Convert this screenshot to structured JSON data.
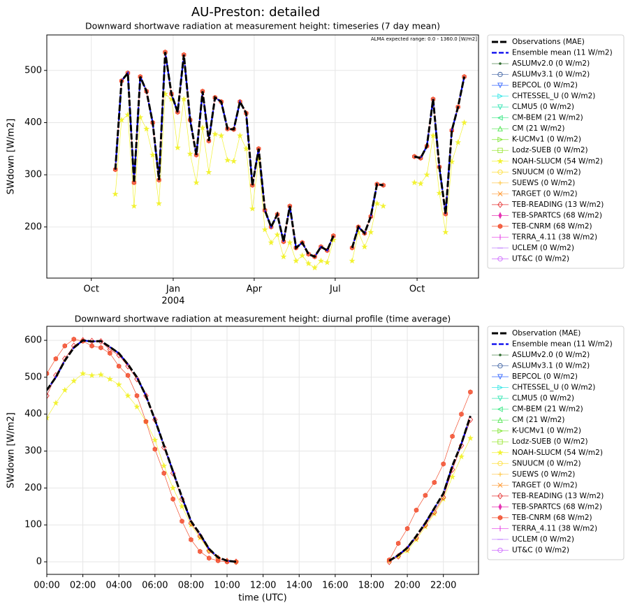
{
  "suptitle": "AU-Preston: detailed",
  "chart_data": [
    {
      "type": "line",
      "title": "Downward shortwave radiation at measurement height: timeseries (7 day mean)",
      "annotation": "ALMA expected range: 0.0 - 1360.0 [W/m2]",
      "ylabel": "SWdown [W/m2]",
      "grid": true,
      "legend": "outside right",
      "xlim": [
        "2003-08-12",
        "2004-12-09"
      ],
      "xticks": [
        {
          "value": "2003-10-01",
          "label": "Oct"
        },
        {
          "value": "2004-01-01",
          "label": "Jan",
          "sublabel": "2004"
        },
        {
          "value": "2004-04-01",
          "label": "Apr"
        },
        {
          "value": "2004-07-01",
          "label": "Jul"
        },
        {
          "value": "2004-10-01",
          "label": "Oct"
        }
      ],
      "ylim": [
        102,
        568
      ],
      "yticks": [
        200,
        300,
        400,
        500
      ],
      "x": [
        "2003-10-28",
        "2003-11-04",
        "2003-11-11",
        "2003-11-18",
        "2003-11-25",
        "2003-12-02",
        "2003-12-09",
        "2003-12-16",
        "2003-12-23",
        "2003-12-30",
        "2004-01-06",
        "2004-01-13",
        "2004-01-20",
        "2004-01-27",
        "2004-02-03",
        "2004-02-10",
        "2004-02-17",
        "2004-02-24",
        "2004-03-02",
        "2004-03-09",
        "2004-03-16",
        "2004-03-23",
        "2004-03-30",
        "2004-04-06",
        "2004-04-13",
        "2004-04-20",
        "2004-04-27",
        "2004-05-04",
        "2004-05-11",
        "2004-05-18",
        "2004-05-25",
        "2004-06-01",
        "2004-06-08",
        "2004-06-15",
        "2004-06-22",
        "2004-06-29",
        "2004-07-06",
        "2004-07-13",
        "2004-07-20",
        "2004-07-27",
        "2004-08-03",
        "2004-08-10",
        "2004-08-17",
        "2004-08-24",
        "2004-08-31",
        "2004-09-07",
        "2004-09-14",
        "2004-09-21",
        "2004-09-28",
        "2004-10-05",
        "2004-10-12",
        "2004-10-19",
        "2004-10-26",
        "2004-11-02",
        "2004-11-09",
        "2004-11-16",
        "2004-11-23"
      ],
      "series": [
        {
          "name": "Observations (MAE)",
          "color": "#000000",
          "style": "obs",
          "values": [
            310,
            480,
            495,
            285,
            488,
            460,
            400,
            290,
            535,
            455,
            420,
            530,
            405,
            338,
            460,
            365,
            448,
            440,
            388,
            387,
            440,
            418,
            280,
            350,
            232,
            200,
            224,
            172,
            240,
            160,
            170,
            148,
            143,
            162,
            155,
            183,
            null,
            null,
            160,
            200,
            188,
            220,
            282,
            280,
            null,
            null,
            null,
            null,
            335,
            332,
            355,
            445,
            315,
            225,
            385,
            430,
            488
          ]
        },
        {
          "name": "Ensemble mean (11 W/m2)",
          "color": "#0000ee",
          "style": "ens",
          "values": [
            310,
            480,
            495,
            285,
            488,
            460,
            400,
            290,
            535,
            455,
            420,
            530,
            405,
            338,
            460,
            365,
            448,
            440,
            388,
            387,
            440,
            418,
            280,
            350,
            232,
            200,
            224,
            172,
            240,
            160,
            170,
            148,
            143,
            162,
            155,
            183,
            null,
            null,
            160,
            200,
            188,
            220,
            282,
            280,
            null,
            null,
            null,
            null,
            335,
            332,
            355,
            445,
            315,
            225,
            385,
            430,
            488
          ]
        },
        {
          "name": "ASLUMv2.0 (0 W/m2)",
          "color": "#2e6b2e",
          "marker": "dot"
        },
        {
          "name": "ASLUMv3.1 (0 W/m2)",
          "color": "#3a5fa0",
          "marker": "circle"
        },
        {
          "name": "BEPCOL (0 W/m2)",
          "color": "#3366ff",
          "marker": "tri-down"
        },
        {
          "name": "CHTESSEL_U (0 W/m2)",
          "color": "#33e6e6",
          "marker": "tri-right"
        },
        {
          "name": "CLMU5 (0 W/m2)",
          "color": "#33e6b3",
          "marker": "tri-down"
        },
        {
          "name": "CM-BEM (21 W/m2)",
          "color": "#33e680",
          "marker": "tri-left"
        },
        {
          "name": "CM (21 W/m2)",
          "color": "#4de64d",
          "marker": "tri-up"
        },
        {
          "name": "K-UCMv1 (0 W/m2)",
          "color": "#80e633",
          "marker": "tri-right"
        },
        {
          "name": "Lodz-SUEB (0 W/m2)",
          "color": "#99e633",
          "marker": "square"
        },
        {
          "name": "NOAH-SLUCM (54 W/m2)",
          "color": "#f2f233",
          "marker": "star",
          "values": [
            263,
            405,
            415,
            240,
            410,
            388,
            338,
            245,
            455,
            445,
            352,
            445,
            340,
            285,
            390,
            305,
            378,
            375,
            328,
            326,
            375,
            350,
            235,
            330,
            195,
            170,
            185,
            143,
            170,
            135,
            145,
            130,
            122,
            135,
            132,
            175,
            null,
            null,
            135,
            190,
            162,
            190,
            245,
            240,
            null,
            null,
            null,
            null,
            285,
            283,
            300,
            375,
            265,
            190,
            325,
            362,
            400
          ]
        },
        {
          "name": "SNUUCM (0 W/m2)",
          "color": "#ffdd33",
          "marker": "circle"
        },
        {
          "name": "SUEWS (0 W/m2)",
          "color": "#ffc033",
          "marker": "plus"
        },
        {
          "name": "TARGET (0 W/m2)",
          "color": "#ff9933",
          "marker": "x"
        },
        {
          "name": "TEB-READING (13 W/m2)",
          "color": "#e63333",
          "marker": "diamond"
        },
        {
          "name": "TEB-SPARTCS (68 W/m2)",
          "color": "#e633b3",
          "marker": "thin-diamond"
        },
        {
          "name": "TEB-CNRM (68 W/m2)",
          "color": "#f25030",
          "marker": "hexagon",
          "values": [
            310,
            480,
            495,
            285,
            488,
            460,
            400,
            290,
            535,
            455,
            420,
            530,
            405,
            338,
            460,
            365,
            448,
            440,
            388,
            387,
            440,
            418,
            280,
            350,
            232,
            200,
            224,
            172,
            240,
            160,
            170,
            148,
            143,
            162,
            155,
            183,
            null,
            null,
            160,
            200,
            188,
            220,
            282,
            280,
            null,
            null,
            null,
            null,
            335,
            332,
            355,
            445,
            315,
            225,
            385,
            430,
            488
          ]
        },
        {
          "name": "TERRA_4.11 (38 W/m2)",
          "color": "#e633e6",
          "marker": "vline"
        },
        {
          "name": "UCLEM (0 W/m2)",
          "color": "#b366ff",
          "marker": "hline"
        },
        {
          "name": "UT&C (0 W/m2)",
          "color": "#cc66ff",
          "marker": "circle"
        }
      ]
    },
    {
      "type": "line",
      "title": "Downward shortwave radiation at measurement height: diurnal profile (time average)",
      "xlabel": "time (UTC)",
      "ylabel": "SWdown [W/m2]",
      "grid": true,
      "legend": "outside right",
      "xlim": [
        0,
        23.95
      ],
      "xticks": [
        {
          "value": 0,
          "label": "00:00"
        },
        {
          "value": 2,
          "label": "02:00"
        },
        {
          "value": 4,
          "label": "04:00"
        },
        {
          "value": 6,
          "label": "06:00"
        },
        {
          "value": 8,
          "label": "08:00"
        },
        {
          "value": 10,
          "label": "10:00"
        },
        {
          "value": 12,
          "label": "12:00"
        },
        {
          "value": 14,
          "label": "14:00"
        },
        {
          "value": 16,
          "label": "16:00"
        },
        {
          "value": 18,
          "label": "18:00"
        },
        {
          "value": 20,
          "label": "20:00"
        },
        {
          "value": 22,
          "label": "22:00"
        }
      ],
      "ylim": [
        -34,
        638
      ],
      "yticks": [
        0,
        100,
        200,
        300,
        400,
        500,
        600
      ],
      "x": [
        0,
        0.5,
        1,
        1.5,
        2,
        2.5,
        3,
        3.5,
        4,
        4.5,
        5,
        5.5,
        6,
        6.5,
        7,
        7.5,
        8,
        8.5,
        9,
        9.5,
        10,
        10.5,
        11,
        11.5,
        12,
        12.5,
        13,
        13.5,
        14,
        14.5,
        15,
        15.5,
        16,
        16.5,
        17,
        17.5,
        18,
        18.5,
        19,
        19.5,
        20,
        20.5,
        21,
        21.5,
        22,
        22.5,
        23,
        23.5
      ],
      "series": [
        {
          "name": "Observation (MAE)",
          "color": "#000000",
          "style": "obs",
          "values": [
            465,
            500,
            545,
            580,
            600,
            597,
            598,
            582,
            565,
            535,
            500,
            450,
            385,
            315,
            245,
            175,
            110,
            75,
            35,
            12,
            3,
            0,
            null,
            null,
            null,
            null,
            null,
            null,
            null,
            null,
            null,
            null,
            null,
            null,
            null,
            null,
            null,
            null,
            3,
            18,
            38,
            70,
            105,
            145,
            185,
            260,
            320,
            395
          ]
        },
        {
          "name": "Ensemble mean (11 W/m2)",
          "color": "#0000ee",
          "style": "ens",
          "values": [
            465,
            500,
            545,
            580,
            600,
            597,
            598,
            582,
            565,
            535,
            500,
            450,
            385,
            315,
            245,
            175,
            110,
            75,
            35,
            12,
            3,
            0,
            null,
            null,
            null,
            null,
            null,
            null,
            null,
            null,
            null,
            null,
            null,
            null,
            null,
            null,
            null,
            null,
            3,
            18,
            38,
            70,
            105,
            145,
            185,
            260,
            320,
            395
          ]
        },
        {
          "name": "ASLUMv2.0 (0 W/m2)",
          "color": "#2e6b2e",
          "marker": "dot"
        },
        {
          "name": "ASLUMv3.1 (0 W/m2)",
          "color": "#3a5fa0",
          "marker": "circle"
        },
        {
          "name": "BEPCOL (0 W/m2)",
          "color": "#3366ff",
          "marker": "tri-down"
        },
        {
          "name": "CHTESSEL_U (0 W/m2)",
          "color": "#33e6e6",
          "marker": "tri-right"
        },
        {
          "name": "CLMU5 (0 W/m2)",
          "color": "#33e6b3",
          "marker": "tri-down"
        },
        {
          "name": "CM-BEM (21 W/m2)",
          "color": "#33e680",
          "marker": "tri-left"
        },
        {
          "name": "CM (21 W/m2)",
          "color": "#4de64d",
          "marker": "tri-up"
        },
        {
          "name": "K-UCMv1 (0 W/m2)",
          "color": "#80e633",
          "marker": "tri-right"
        },
        {
          "name": "Lodz-SUEB (0 W/m2)",
          "color": "#99e633",
          "marker": "square"
        },
        {
          "name": "NOAH-SLUCM (54 W/m2)",
          "color": "#f2f233",
          "marker": "star",
          "values": [
            390,
            430,
            465,
            490,
            510,
            505,
            507,
            495,
            480,
            450,
            420,
            380,
            330,
            260,
            200,
            150,
            100,
            65,
            30,
            10,
            3,
            0,
            null,
            null,
            null,
            null,
            null,
            null,
            null,
            null,
            null,
            null,
            null,
            null,
            null,
            null,
            null,
            null,
            2,
            15,
            30,
            60,
            95,
            130,
            170,
            230,
            285,
            335
          ]
        },
        {
          "name": "SNUUCM (0 W/m2)",
          "color": "#ffdd33",
          "marker": "circle"
        },
        {
          "name": "SUEWS (0 W/m2)",
          "color": "#ffc033",
          "marker": "plus"
        },
        {
          "name": "TARGET (0 W/m2)",
          "color": "#ff9933",
          "marker": "x"
        },
        {
          "name": "TEB-READING (13 W/m2)",
          "color": "#e63333",
          "marker": "diamond",
          "values": [
            450,
            505,
            550,
            585,
            600,
            598,
            597,
            575,
            560,
            530,
            495,
            450,
            385,
            310,
            240,
            170,
            105,
            70,
            30,
            10,
            2,
            0,
            null,
            null,
            null,
            null,
            null,
            null,
            null,
            null,
            null,
            null,
            null,
            null,
            null,
            null,
            null,
            null,
            0,
            15,
            35,
            65,
            100,
            135,
            175,
            250,
            315,
            385
          ]
        },
        {
          "name": "TEB-SPARTCS (68 W/m2)",
          "color": "#e633b3",
          "marker": "thin-diamond"
        },
        {
          "name": "TEB-CNRM (68 W/m2)",
          "color": "#f25030",
          "marker": "hexagon",
          "values": [
            510,
            550,
            585,
            603,
            598,
            585,
            580,
            565,
            530,
            505,
            450,
            380,
            305,
            240,
            170,
            110,
            60,
            28,
            10,
            3,
            0,
            0,
            null,
            null,
            null,
            null,
            null,
            null,
            null,
            null,
            null,
            null,
            null,
            null,
            null,
            null,
            null,
            null,
            5,
            50,
            90,
            140,
            180,
            215,
            265,
            340,
            400,
            460
          ]
        },
        {
          "name": "TERRA_4.11 (38 W/m2)",
          "color": "#e633e6",
          "marker": "vline"
        },
        {
          "name": "UCLEM (0 W/m2)",
          "color": "#b366ff",
          "marker": "hline"
        },
        {
          "name": "UT&C (0 W/m2)",
          "color": "#cc66ff",
          "marker": "circle"
        }
      ]
    }
  ]
}
